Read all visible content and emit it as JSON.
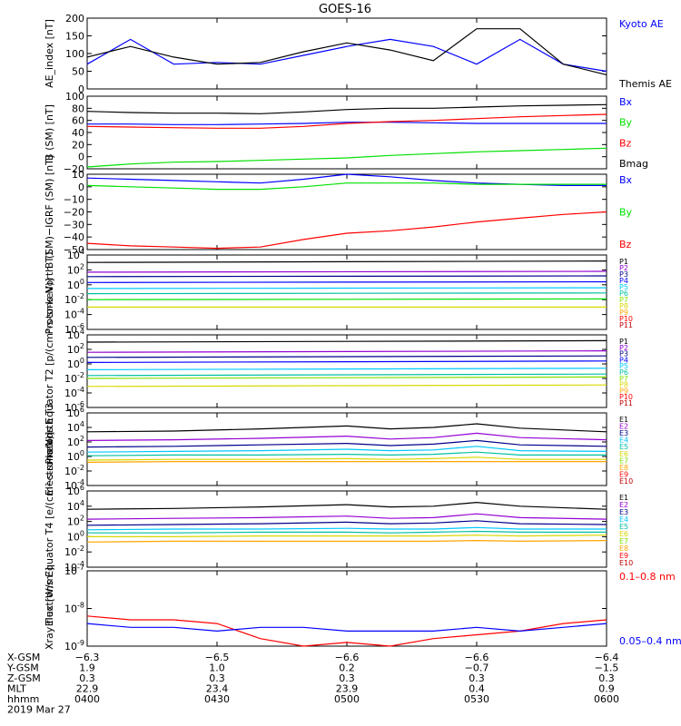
{
  "title": "GOES-16",
  "colors": {
    "black": "#000000",
    "blue": "#0000ff",
    "green": "#00e000",
    "red": "#ff0000",
    "navy": "#00008b",
    "purple": "#9400d3",
    "cyan": "#00c8ff",
    "teal": "#00c0a0",
    "lime": "#7fe000",
    "yellow": "#d8d800",
    "orange": "#ffa500",
    "darkred": "#c00000"
  },
  "chart_data": [
    {
      "type": "line",
      "ylabel": "AE_index [nT]",
      "ylim": [
        0,
        200
      ],
      "yscale": "linear",
      "yticks": [
        "0",
        "50",
        "100",
        "150",
        "200"
      ],
      "x": [
        "0400",
        "0410",
        "0420",
        "0430",
        "0440",
        "0450",
        "0500",
        "0510",
        "0520",
        "0530",
        "0540",
        "0550",
        "0600"
      ],
      "side_labels": [
        {
          "text": "Kyoto AE",
          "color": "blue"
        },
        {
          "text": "Themis AE",
          "color": "black"
        }
      ],
      "series": [
        {
          "name": "Kyoto AE",
          "color": "blue",
          "values": [
            70,
            140,
            70,
            75,
            70,
            95,
            120,
            140,
            120,
            70,
            140,
            70,
            50
          ]
        },
        {
          "name": "Themis AE",
          "color": "black",
          "values": [
            90,
            120,
            90,
            70,
            75,
            105,
            130,
            110,
            80,
            170,
            170,
            70,
            40
          ]
        }
      ]
    },
    {
      "type": "line",
      "ylabel": "B (SM) [nT]",
      "ylim": [
        -20,
        100
      ],
      "yscale": "linear",
      "yticks": [
        "−20",
        "0",
        "20",
        "40",
        "60",
        "80",
        "100"
      ],
      "x": [
        "0400",
        "0410",
        "0420",
        "0430",
        "0440",
        "0450",
        "0500",
        "0510",
        "0520",
        "0530",
        "0540",
        "0550",
        "0600"
      ],
      "side_labels": [
        {
          "text": "Bx",
          "color": "blue"
        },
        {
          "text": "By",
          "color": "green"
        },
        {
          "text": "Bz",
          "color": "red"
        },
        {
          "text": "Bmag",
          "color": "black"
        }
      ],
      "series": [
        {
          "name": "Bx",
          "color": "blue",
          "values": [
            54,
            54,
            53,
            53,
            54,
            55,
            57,
            57,
            56,
            55,
            55,
            55,
            55
          ]
        },
        {
          "name": "By",
          "color": "green",
          "values": [
            -17,
            -12,
            -9,
            -8,
            -6,
            -4,
            -2,
            2,
            5,
            8,
            10,
            12,
            14
          ]
        },
        {
          "name": "Bz",
          "color": "red",
          "values": [
            50,
            49,
            48,
            47,
            47,
            50,
            55,
            58,
            60,
            63,
            66,
            68,
            70
          ]
        },
        {
          "name": "Bmag",
          "color": "black",
          "values": [
            75,
            73,
            72,
            72,
            71,
            74,
            78,
            80,
            80,
            82,
            84,
            85,
            86
          ]
        }
      ]
    },
    {
      "type": "line",
      "ylabel": "B (SM)−IGRF (SM) [nT]",
      "ylim": [
        -50,
        10
      ],
      "yscale": "linear",
      "yticks": [
        "−50",
        "−40",
        "−30",
        "−20",
        "−10",
        "0",
        "10"
      ],
      "x": [
        "0400",
        "0410",
        "0420",
        "0430",
        "0440",
        "0450",
        "0500",
        "0510",
        "0520",
        "0530",
        "0540",
        "0550",
        "0600"
      ],
      "side_labels": [
        {
          "text": "Bx",
          "color": "blue"
        },
        {
          "text": "By",
          "color": "green"
        },
        {
          "text": "Bz",
          "color": "red"
        }
      ],
      "series": [
        {
          "name": "Bx",
          "color": "blue",
          "values": [
            7,
            6,
            5,
            4,
            3,
            6,
            10,
            8,
            5,
            3,
            2,
            1,
            1
          ]
        },
        {
          "name": "By",
          "color": "green",
          "values": [
            1,
            0,
            -1,
            -2,
            -2,
            0,
            3,
            3,
            3,
            2,
            2,
            2,
            2
          ]
        },
        {
          "name": "Bz",
          "color": "red",
          "values": [
            -45,
            -47,
            -48,
            -49,
            -48,
            -42,
            -37,
            -35,
            -32,
            -28,
            -25,
            -22,
            -20
          ]
        }
      ]
    },
    {
      "type": "line",
      "ylabel": "Protons North T1",
      "ylim": [
        -6,
        4
      ],
      "yscale": "log",
      "yticks": [
        "10^-6",
        "10^-4",
        "10^-2",
        "10^0",
        "10^2",
        "10^4"
      ],
      "x": [
        "0400",
        "0600"
      ],
      "side_labels": [
        {
          "text": "P1",
          "color": "black"
        },
        {
          "text": "P2",
          "color": "purple"
        },
        {
          "text": "P3",
          "color": "navy"
        },
        {
          "text": "P4",
          "color": "blue"
        },
        {
          "text": "P5",
          "color": "cyan"
        },
        {
          "text": "P6",
          "color": "teal"
        },
        {
          "text": "P7",
          "color": "lime"
        },
        {
          "text": "P8",
          "color": "yellow"
        },
        {
          "text": "P9",
          "color": "orange"
        },
        {
          "text": "P10",
          "color": "red"
        },
        {
          "text": "P11",
          "color": "darkred"
        }
      ],
      "series": [
        {
          "name": "P1",
          "color": "black",
          "values": [
            3.0,
            3.2
          ]
        },
        {
          "name": "P2",
          "color": "purple",
          "values": [
            1.7,
            1.8
          ]
        },
        {
          "name": "P3",
          "color": "navy",
          "values": [
            1.1,
            1.2
          ]
        },
        {
          "name": "P4",
          "color": "blue",
          "values": [
            0.3,
            0.4
          ]
        },
        {
          "name": "P5",
          "color": "cyan",
          "values": [
            -0.5,
            -0.4
          ]
        },
        {
          "name": "P6",
          "color": "teal",
          "values": [
            -1.2,
            -1.1
          ]
        },
        {
          "name": "P7",
          "color": "green",
          "values": [
            -2.0,
            -1.9
          ]
        },
        {
          "name": "P8",
          "color": "yellow",
          "values": [
            -3.0,
            -3.0
          ]
        }
      ]
    },
    {
      "type": "line",
      "ylabel": "Protons Equator T2 [p/(cm²-s-sr-keV)]",
      "ylim": [
        -6,
        4
      ],
      "yscale": "log",
      "yticks": [
        "10^-6",
        "10^-4",
        "10^-2",
        "10^0",
        "10^2",
        "10^4"
      ],
      "x": [
        "0400",
        "0600"
      ],
      "side_labels": [
        {
          "text": "P1",
          "color": "black"
        },
        {
          "text": "P2",
          "color": "purple"
        },
        {
          "text": "P3",
          "color": "navy"
        },
        {
          "text": "P4",
          "color": "blue"
        },
        {
          "text": "P5",
          "color": "cyan"
        },
        {
          "text": "P6",
          "color": "teal"
        },
        {
          "text": "P7",
          "color": "lime"
        },
        {
          "text": "P8",
          "color": "yellow"
        },
        {
          "text": "P9",
          "color": "orange"
        },
        {
          "text": "P10",
          "color": "red"
        },
        {
          "text": "P11",
          "color": "darkred"
        }
      ],
      "series": [
        {
          "name": "P1",
          "color": "black",
          "values": [
            3.0,
            3.2
          ]
        },
        {
          "name": "P2",
          "color": "purple",
          "values": [
            1.6,
            1.8
          ]
        },
        {
          "name": "P3",
          "color": "navy",
          "values": [
            0.9,
            1.1
          ]
        },
        {
          "name": "P4",
          "color": "blue",
          "values": [
            0.2,
            0.4
          ]
        },
        {
          "name": "P5",
          "color": "cyan",
          "values": [
            -0.8,
            -0.6
          ]
        },
        {
          "name": "P6",
          "color": "teal",
          "values": [
            -1.6,
            -1.4
          ]
        },
        {
          "name": "P7",
          "color": "lime",
          "values": [
            -2.0,
            -1.8
          ]
        },
        {
          "name": "P8",
          "color": "yellow",
          "values": [
            -3.1,
            -2.9
          ]
        }
      ]
    },
    {
      "type": "line",
      "ylabel": "Electrons North T3",
      "ylim": [
        -4,
        6
      ],
      "yscale": "log",
      "yticks": [
        "10^-4",
        "10^-2",
        "10^0",
        "10^2",
        "10^4",
        "10^6"
      ],
      "x": [
        "0400",
        "0420",
        "0440",
        "0500",
        "0510",
        "0520",
        "0530",
        "0540",
        "0600"
      ],
      "side_labels": [
        {
          "text": "E1",
          "color": "black"
        },
        {
          "text": "E2",
          "color": "purple"
        },
        {
          "text": "E3",
          "color": "navy"
        },
        {
          "text": "E4",
          "color": "cyan"
        },
        {
          "text": "E5",
          "color": "teal"
        },
        {
          "text": "E6",
          "color": "yellow"
        },
        {
          "text": "E7",
          "color": "lime"
        },
        {
          "text": "E8",
          "color": "orange"
        },
        {
          "text": "E9",
          "color": "red"
        },
        {
          "text": "E10",
          "color": "darkred"
        }
      ],
      "series": [
        {
          "name": "E1",
          "color": "black",
          "values": [
            3.4,
            3.5,
            3.8,
            4.2,
            3.8,
            4.0,
            4.5,
            3.9,
            3.4
          ]
        },
        {
          "name": "E2",
          "color": "purple",
          "values": [
            2.2,
            2.3,
            2.5,
            2.8,
            2.4,
            2.6,
            3.2,
            2.6,
            2.3
          ]
        },
        {
          "name": "E3",
          "color": "navy",
          "values": [
            1.3,
            1.4,
            1.6,
            1.8,
            1.5,
            1.7,
            2.2,
            1.6,
            1.4
          ]
        },
        {
          "name": "E4",
          "color": "cyan",
          "values": [
            0.6,
            0.7,
            0.8,
            1.0,
            0.8,
            0.9,
            1.4,
            0.8,
            0.7
          ]
        },
        {
          "name": "E5",
          "color": "teal",
          "values": [
            0.1,
            0.2,
            0.2,
            0.3,
            0.2,
            0.3,
            0.6,
            0.2,
            0.2
          ]
        },
        {
          "name": "E6",
          "color": "yellow",
          "values": [
            -0.5,
            -0.4,
            -0.4,
            -0.3,
            -0.4,
            -0.3,
            -0.1,
            -0.4,
            -0.4
          ]
        },
        {
          "name": "E8",
          "color": "orange",
          "values": [
            -0.8,
            -0.7,
            -0.7,
            -0.7,
            -0.7,
            -0.7,
            -0.7,
            -0.7,
            -0.7
          ]
        }
      ]
    },
    {
      "type": "line",
      "ylabel": "Electrons Equator T4 [e/(cm²-s-sr-keV)]",
      "ylim": [
        -4,
        6
      ],
      "yscale": "log",
      "yticks": [
        "10^-4",
        "10^-2",
        "10^0",
        "10^2",
        "10^4",
        "10^6"
      ],
      "x": [
        "0400",
        "0420",
        "0440",
        "0500",
        "0510",
        "0520",
        "0530",
        "0540",
        "0600"
      ],
      "side_labels": [
        {
          "text": "E1",
          "color": "black"
        },
        {
          "text": "E2",
          "color": "purple"
        },
        {
          "text": "E3",
          "color": "navy"
        },
        {
          "text": "E4",
          "color": "cyan"
        },
        {
          "text": "E5",
          "color": "teal"
        },
        {
          "text": "E6",
          "color": "yellow"
        },
        {
          "text": "E7",
          "color": "lime"
        },
        {
          "text": "E8",
          "color": "orange"
        },
        {
          "text": "E9",
          "color": "red"
        },
        {
          "text": "E10",
          "color": "darkred"
        }
      ],
      "series": [
        {
          "name": "E1",
          "color": "black",
          "values": [
            3.6,
            3.7,
            3.9,
            4.2,
            3.9,
            4.0,
            4.5,
            4.0,
            3.6
          ]
        },
        {
          "name": "E2",
          "color": "purple",
          "values": [
            2.3,
            2.4,
            2.5,
            2.7,
            2.4,
            2.5,
            3.0,
            2.5,
            2.3
          ]
        },
        {
          "name": "E3",
          "color": "navy",
          "values": [
            1.5,
            1.6,
            1.7,
            1.9,
            1.7,
            1.8,
            2.1,
            1.7,
            1.6
          ]
        },
        {
          "name": "E4",
          "color": "cyan",
          "values": [
            0.9,
            1.0,
            1.0,
            1.1,
            1.0,
            1.0,
            1.2,
            1.0,
            1.0
          ]
        },
        {
          "name": "E5",
          "color": "teal",
          "values": [
            0.5,
            0.5,
            0.6,
            0.6,
            0.5,
            0.6,
            0.7,
            0.6,
            0.6
          ]
        },
        {
          "name": "E6",
          "color": "yellow",
          "values": [
            0.0,
            0.0,
            0.1,
            0.1,
            0.1,
            0.1,
            0.2,
            0.1,
            0.2
          ]
        },
        {
          "name": "E8",
          "color": "orange",
          "values": [
            -0.7,
            -0.6,
            -0.6,
            -0.6,
            -0.6,
            -0.6,
            -0.5,
            -0.6,
            -0.5
          ]
        }
      ]
    },
    {
      "type": "line",
      "ylabel": "Xray flux [W/m²]",
      "ylim": [
        -9,
        -7
      ],
      "yscale": "log",
      "yticks": [
        "10^-9",
        "10^-8",
        "10^-7"
      ],
      "x": [
        "0400",
        "0410",
        "0420",
        "0430",
        "0440",
        "0450",
        "0500",
        "0510",
        "0520",
        "0530",
        "0540",
        "0550",
        "0600"
      ],
      "side_labels": [
        {
          "text": "0.1–0.8 nm",
          "color": "red"
        },
        {
          "text": "0.05–0.4 nm",
          "color": "blue"
        }
      ],
      "series": [
        {
          "name": "0.1–0.8 nm",
          "color": "red",
          "values": [
            -8.2,
            -8.3,
            -8.3,
            -8.4,
            -8.8,
            -9.0,
            -8.9,
            -9.0,
            -8.8,
            -8.7,
            -8.6,
            -8.4,
            -8.3
          ]
        },
        {
          "name": "0.05–0.4 nm",
          "color": "blue",
          "values": [
            -8.4,
            -8.5,
            -8.5,
            -8.6,
            -8.5,
            -8.5,
            -8.6,
            -8.6,
            -8.6,
            -8.5,
            -8.6,
            -8.5,
            -8.4
          ]
        }
      ]
    }
  ],
  "footer": {
    "rows": [
      {
        "label": "X-GSM",
        "values": [
          "−6.3",
          "−6.5",
          "−6.6",
          "−6.6",
          "−6.4"
        ]
      },
      {
        "label": "Y-GSM",
        "values": [
          "1.9",
          "1.0",
          "0.2",
          "−0.7",
          "−1.5"
        ]
      },
      {
        "label": "Z-GSM",
        "values": [
          "0.3",
          "0.3",
          "0.3",
          "0.3",
          "0.3"
        ]
      },
      {
        "label": "MLT",
        "values": [
          "22.9",
          "23.4",
          "23.9",
          "0.4",
          "0.9"
        ]
      },
      {
        "label": "hhmm",
        "values": [
          "0400",
          "0430",
          "0500",
          "0530",
          "0600"
        ]
      }
    ],
    "date": "2019 Mar 27"
  }
}
